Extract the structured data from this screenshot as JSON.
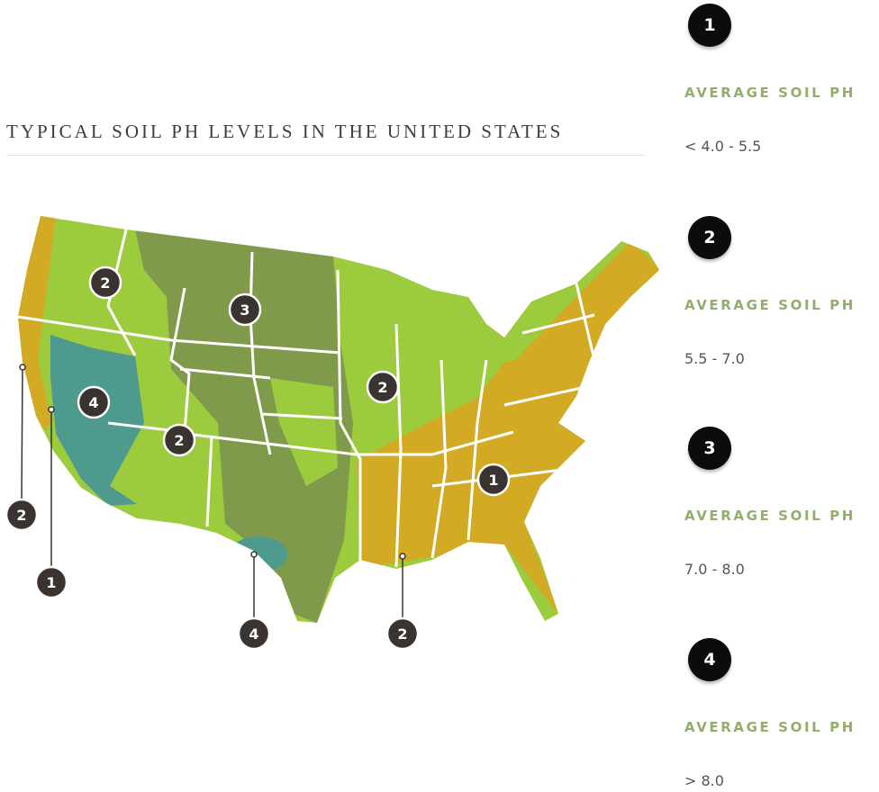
{
  "title": "TYPICAL SOIL PH LEVELS IN THE UNITED STATES",
  "colors": {
    "zone1": "#d2aa24",
    "zone2": "#9ccb3e",
    "zone3": "#7e9a4a",
    "zone4": "#4f9a8e",
    "marker": "#3a3330"
  },
  "legend": [
    {
      "number": "1",
      "label": "AVERAGE SOIL PH",
      "value": "< 4.0 - 5.5"
    },
    {
      "number": "2",
      "label": "AVERAGE SOIL PH",
      "value": "5.5 - 7.0"
    },
    {
      "number": "3",
      "label": "AVERAGE SOIL PH",
      "value": "7.0 - 8.0"
    },
    {
      "number": "4",
      "label": "AVERAGE SOIL PH",
      "value": "> 8.0"
    }
  ],
  "map_markers": [
    "2",
    "3",
    "2",
    "4",
    "2",
    "1",
    "2",
    "1",
    "4",
    "2"
  ]
}
